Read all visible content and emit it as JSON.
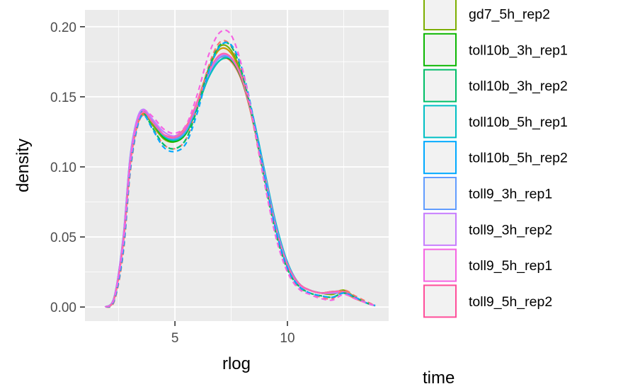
{
  "chart_data": {
    "type": "line",
    "title": "",
    "xlabel": "rlog",
    "ylabel": "density",
    "xlim": [
      1.0,
      14.5
    ],
    "ylim": [
      -0.01,
      0.212
    ],
    "grid": true,
    "x_ticks": [
      5,
      10
    ],
    "x_tick_labels": [
      "5",
      "10"
    ],
    "y_ticks": [
      0.0,
      0.05,
      0.1,
      0.15,
      0.2
    ],
    "y_tick_labels": [
      "0.00",
      "0.05",
      "0.10",
      "0.15",
      "0.20"
    ],
    "legend_position": "right",
    "legend_title": "time",
    "legend": [
      {
        "label": "gd7_5h_rep2",
        "color": "#7CAE00"
      },
      {
        "label": "toll10b_3h_rep1",
        "color": "#0CB702"
      },
      {
        "label": "toll10b_3h_rep2",
        "color": "#00BE67"
      },
      {
        "label": "toll10b_5h_rep1",
        "color": "#00BFC4"
      },
      {
        "label": "toll10b_5h_rep2",
        "color": "#00A9FF"
      },
      {
        "label": "toll9_3h_rep1",
        "color": "#619CFF"
      },
      {
        "label": "toll9_3h_rep2",
        "color": "#C77CFF"
      },
      {
        "label": "toll9_5h_rep1",
        "color": "#F564E3"
      },
      {
        "label": "toll9_5h_rep2",
        "color": "#FF4E9A"
      }
    ],
    "series_x": [
      1.9,
      2.3,
      2.7,
      3.0,
      3.3,
      3.6,
      4.0,
      4.5,
      5.0,
      5.5,
      6.0,
      6.5,
      7.0,
      7.5,
      8.0,
      8.5,
      9.0,
      9.5,
      10.0,
      10.5,
      11.0,
      11.5,
      12.0,
      12.5,
      13.0,
      13.5,
      13.9
    ],
    "series": [
      {
        "color": "#F8766D",
        "dash": "solid",
        "values": [
          0.0,
          0.006,
          0.045,
          0.1,
          0.128,
          0.137,
          0.131,
          0.123,
          0.122,
          0.129,
          0.146,
          0.166,
          0.178,
          0.175,
          0.16,
          0.13,
          0.091,
          0.055,
          0.03,
          0.017,
          0.012,
          0.01,
          0.011,
          0.01,
          0.006,
          0.003,
          0.001
        ]
      },
      {
        "color": "#F8766D",
        "dash": "dashed",
        "values": [
          0.0,
          0.004,
          0.038,
          0.094,
          0.126,
          0.137,
          0.128,
          0.116,
          0.113,
          0.12,
          0.143,
          0.172,
          0.189,
          0.186,
          0.165,
          0.129,
          0.087,
          0.05,
          0.026,
          0.014,
          0.01,
          0.007,
          0.006,
          0.012,
          0.008,
          0.004,
          0.001
        ]
      },
      {
        "color": "#CD9600",
        "dash": "solid",
        "values": [
          0.0,
          0.006,
          0.046,
          0.101,
          0.129,
          0.138,
          0.131,
          0.122,
          0.12,
          0.127,
          0.147,
          0.17,
          0.184,
          0.181,
          0.163,
          0.13,
          0.091,
          0.055,
          0.03,
          0.017,
          0.012,
          0.01,
          0.01,
          0.012,
          0.007,
          0.003,
          0.001
        ]
      },
      {
        "color": "#7CAE00",
        "dash": "solid",
        "values": [
          0.0,
          0.006,
          0.047,
          0.102,
          0.13,
          0.139,
          0.13,
          0.12,
          0.118,
          0.125,
          0.146,
          0.17,
          0.186,
          0.183,
          0.164,
          0.131,
          0.091,
          0.055,
          0.029,
          0.016,
          0.012,
          0.01,
          0.009,
          0.012,
          0.007,
          0.003,
          0.001
        ]
      },
      {
        "color": "#0CB702",
        "dash": "solid",
        "values": [
          0.0,
          0.007,
          0.048,
          0.104,
          0.131,
          0.14,
          0.132,
          0.121,
          0.118,
          0.124,
          0.143,
          0.164,
          0.176,
          0.176,
          0.161,
          0.131,
          0.093,
          0.057,
          0.031,
          0.017,
          0.012,
          0.01,
          0.011,
          0.011,
          0.007,
          0.003,
          0.001
        ]
      },
      {
        "color": "#00BE67",
        "dash": "dashed",
        "values": [
          0.0,
          0.005,
          0.041,
          0.097,
          0.128,
          0.138,
          0.128,
          0.116,
          0.113,
          0.12,
          0.142,
          0.17,
          0.187,
          0.186,
          0.166,
          0.131,
          0.089,
          0.052,
          0.027,
          0.015,
          0.01,
          0.008,
          0.007,
          0.01,
          0.007,
          0.003,
          0.001
        ]
      },
      {
        "color": "#00BFC4",
        "dash": "solid",
        "values": [
          0.0,
          0.007,
          0.049,
          0.105,
          0.132,
          0.14,
          0.132,
          0.122,
          0.119,
          0.125,
          0.144,
          0.164,
          0.176,
          0.177,
          0.163,
          0.134,
          0.096,
          0.059,
          0.032,
          0.017,
          0.012,
          0.01,
          0.01,
          0.01,
          0.007,
          0.003,
          0.001
        ]
      },
      {
        "color": "#00A9FF",
        "dash": "dashed",
        "values": [
          0.0,
          0.005,
          0.04,
          0.096,
          0.127,
          0.137,
          0.127,
          0.114,
          0.111,
          0.117,
          0.139,
          0.168,
          0.186,
          0.187,
          0.169,
          0.134,
          0.092,
          0.054,
          0.028,
          0.015,
          0.01,
          0.008,
          0.007,
          0.01,
          0.007,
          0.003,
          0.001
        ]
      },
      {
        "color": "#619CFF",
        "dash": "solid",
        "values": [
          0.0,
          0.007,
          0.05,
          0.106,
          0.133,
          0.141,
          0.133,
          0.123,
          0.12,
          0.126,
          0.145,
          0.166,
          0.178,
          0.177,
          0.162,
          0.132,
          0.094,
          0.057,
          0.031,
          0.017,
          0.012,
          0.01,
          0.01,
          0.01,
          0.007,
          0.003,
          0.001
        ]
      },
      {
        "color": "#C77CFF",
        "dash": "solid",
        "values": [
          0.0,
          0.007,
          0.049,
          0.105,
          0.133,
          0.141,
          0.134,
          0.125,
          0.122,
          0.128,
          0.146,
          0.167,
          0.179,
          0.178,
          0.162,
          0.131,
          0.093,
          0.056,
          0.03,
          0.016,
          0.012,
          0.01,
          0.01,
          0.011,
          0.007,
          0.003,
          0.001
        ]
      },
      {
        "color": "#F564E3",
        "dash": "dashed",
        "values": [
          0.0,
          0.006,
          0.045,
          0.1,
          0.13,
          0.14,
          0.136,
          0.127,
          0.124,
          0.13,
          0.152,
          0.18,
          0.196,
          0.194,
          0.17,
          0.131,
          0.087,
          0.049,
          0.025,
          0.013,
          0.009,
          0.006,
          0.005,
          0.009,
          0.006,
          0.003,
          0.001
        ]
      },
      {
        "color": "#FF64B0",
        "dash": "solid",
        "values": [
          0.0,
          0.006,
          0.046,
          0.101,
          0.13,
          0.139,
          0.132,
          0.123,
          0.121,
          0.128,
          0.147,
          0.168,
          0.18,
          0.178,
          0.162,
          0.131,
          0.092,
          0.055,
          0.03,
          0.017,
          0.012,
          0.01,
          0.011,
          0.011,
          0.007,
          0.003,
          0.001
        ]
      }
    ]
  }
}
